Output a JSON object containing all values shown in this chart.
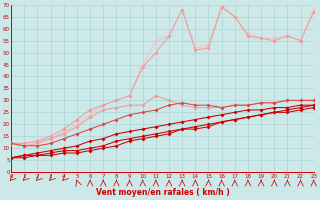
{
  "bg_color": "#cce8e8",
  "grid_color": "#aad4d4",
  "xlabel": "Vent moyen/en rafales ( km/h )",
  "xlabel_color": "#cc0000",
  "tick_color": "#cc0000",
  "ylim": [
    0,
    70
  ],
  "xlim": [
    0,
    23
  ],
  "yticks": [
    0,
    5,
    10,
    15,
    20,
    25,
    30,
    35,
    40,
    45,
    50,
    55,
    60,
    65,
    70
  ],
  "xticks": [
    0,
    1,
    2,
    3,
    4,
    5,
    6,
    7,
    8,
    9,
    10,
    11,
    12,
    13,
    14,
    15,
    16,
    17,
    18,
    19,
    20,
    21,
    22,
    23
  ],
  "x": [
    0,
    1,
    2,
    3,
    4,
    5,
    6,
    7,
    8,
    9,
    10,
    11,
    12,
    13,
    14,
    15,
    16,
    17,
    18,
    19,
    20,
    21,
    22,
    23
  ],
  "line_r1": [
    6,
    6,
    7,
    7,
    8,
    8,
    9,
    10,
    11,
    13,
    14,
    15,
    16,
    18,
    18,
    19,
    21,
    22,
    23,
    24,
    25,
    25,
    26,
    27
  ],
  "line_r2": [
    6,
    7,
    7,
    8,
    9,
    9,
    10,
    11,
    13,
    14,
    15,
    16,
    17,
    18,
    19,
    20,
    21,
    22,
    23,
    24,
    25,
    26,
    27,
    28
  ],
  "line_r3": [
    6,
    7,
    8,
    9,
    10,
    11,
    13,
    14,
    16,
    17,
    18,
    19,
    20,
    21,
    22,
    23,
    24,
    25,
    26,
    26,
    27,
    27,
    28,
    28
  ],
  "line_r4": [
    12,
    11,
    11,
    12,
    14,
    16,
    18,
    20,
    22,
    24,
    25,
    26,
    28,
    29,
    28,
    28,
    27,
    28,
    28,
    29,
    29,
    30,
    30,
    30
  ],
  "line_p1": [
    12,
    11,
    12,
    14,
    16,
    19,
    23,
    26,
    27,
    28,
    28,
    32,
    30,
    28,
    27,
    27,
    27,
    28,
    28,
    29,
    29,
    30,
    30,
    30
  ],
  "line_p2": [
    12,
    12,
    13,
    15,
    18,
    22,
    26,
    28,
    30,
    32,
    44,
    50,
    57,
    68,
    51,
    52,
    69,
    65,
    57,
    56,
    55,
    57,
    55,
    67
  ],
  "line_lo1": [
    12,
    12,
    13,
    14,
    17,
    20,
    24,
    28,
    30,
    32,
    45,
    55,
    57,
    68,
    52,
    53,
    70,
    65,
    58,
    56,
    56,
    57,
    55,
    68
  ],
  "color_red_dark": "#cc0000",
  "color_red_mid": "#dd4444",
  "color_pink": "#ee9999",
  "color_pink_lt": "#ffbbbb",
  "markersize": 2.0,
  "linewidth": 0.75
}
